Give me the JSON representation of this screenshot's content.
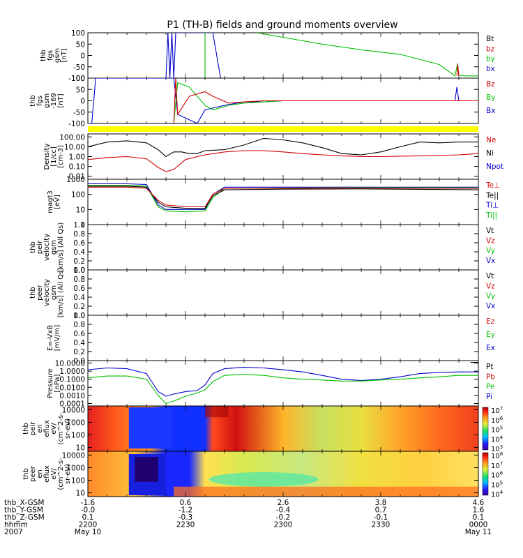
{
  "title": "P1 (TH-B) fields and ground moments overview",
  "chart_data": [
    {
      "id": "fgs",
      "type": "line",
      "ylabel": [
        "thb",
        "fgs",
        "gsm",
        "[nT]"
      ],
      "ylim": [
        -100,
        100
      ],
      "yticks": [
        "100",
        "50",
        "0",
        "-50",
        "-100"
      ],
      "legend": [
        {
          "name": "Bt",
          "color": "#000000"
        },
        {
          "name": "bz",
          "color": "#d40000"
        },
        {
          "name": "by",
          "color": "#00c000"
        },
        {
          "name": "bx",
          "color": "#0000cc"
        }
      ],
      "series": [
        {
          "name": "by",
          "color": "#00c000",
          "x": [
            0.3,
            0.3,
            0.34,
            0.4,
            0.5,
            0.6,
            0.7,
            0.8,
            0.9,
            0.94,
            0.947,
            0.95,
            0.97,
            1.0
          ],
          "y": [
            -100,
            100,
            130,
            110,
            80,
            50,
            25,
            5,
            -40,
            -90,
            -35,
            -88,
            -90,
            -90
          ]
        },
        {
          "name": "bx",
          "color": "#0000cc",
          "x": [
            0.2,
            0.205,
            0.21,
            0.215,
            0.22,
            0.225,
            0.32,
            0.34
          ],
          "y": [
            -100,
            100,
            -100,
            100,
            -100,
            100,
            100,
            -100
          ]
        },
        {
          "name": "bz",
          "color": "#d40000",
          "x": [
            0.945,
            0.947,
            0.95
          ],
          "y": [
            -90,
            -40,
            -90
          ]
        }
      ]
    },
    {
      "id": "fgs2",
      "type": "line",
      "ylabel": [
        "thb",
        "fgs",
        "gsm",
        "-169",
        "[nT]"
      ],
      "ylim": [
        -100,
        100
      ],
      "yticks": [
        "100",
        "50",
        "0",
        "-50",
        "-100"
      ],
      "legend": [
        {
          "name": "Bz",
          "color": "#d40000"
        },
        {
          "name": "By",
          "color": "#00c000"
        },
        {
          "name": "Bx",
          "color": "#0000cc"
        }
      ],
      "series": [
        {
          "name": "Bx",
          "color": "#0000cc",
          "x": [
            0.0,
            0.01,
            0.02,
            0.22,
            0.23,
            0.28,
            0.3,
            0.35,
            0.4,
            0.45,
            0.5,
            0.6,
            0.7,
            0.8,
            0.9,
            0.94,
            0.945,
            0.95,
            1.0
          ],
          "y": [
            -100,
            -100,
            100,
            100,
            -60,
            -100,
            -40,
            -20,
            -5,
            -5,
            0,
            0,
            0,
            0,
            0,
            0,
            60,
            0,
            0
          ]
        },
        {
          "name": "By",
          "color": "#00c000",
          "x": [
            0.22,
            0.23,
            0.26,
            0.28,
            0.3,
            0.32,
            0.34,
            0.36,
            0.38,
            0.4,
            0.45,
            0.5,
            0.6,
            0.7,
            0.8,
            0.9,
            1.0
          ],
          "y": [
            -100,
            80,
            60,
            20,
            -20,
            -40,
            -30,
            -20,
            -15,
            -10,
            -5,
            0,
            0,
            0,
            0,
            0,
            0
          ]
        },
        {
          "name": "Bz",
          "color": "#d40000",
          "x": [
            0.22,
            0.225,
            0.23,
            0.26,
            0.3,
            0.32,
            0.34,
            0.36,
            0.4,
            0.45,
            0.5,
            0.6,
            0.7,
            0.8,
            0.9,
            1.0
          ],
          "y": [
            -100,
            100,
            -60,
            20,
            40,
            20,
            5,
            -10,
            -5,
            0,
            0,
            0,
            0,
            0,
            0,
            0
          ]
        }
      ]
    },
    {
      "id": "density",
      "type": "line",
      "ylabel": [
        "Density",
        "[1/cc]",
        "[cm-3]"
      ],
      "yscale": "log",
      "ylim": [
        0.005,
        200
      ],
      "yticks": [
        "100.00",
        "10.00",
        "1.00",
        "0.10",
        "0.01"
      ],
      "legend": [
        {
          "name": "Ne",
          "color": "#d40000"
        },
        {
          "name": "Ni",
          "color": "#000000"
        },
        {
          "name": "Npot",
          "color": "#0000cc"
        }
      ],
      "series": [
        {
          "name": "Ni",
          "color": "#000000",
          "x": [
            0.0,
            0.05,
            0.1,
            0.15,
            0.18,
            0.2,
            0.22,
            0.24,
            0.26,
            0.28,
            0.3,
            0.35,
            0.4,
            0.45,
            0.5,
            0.55,
            0.6,
            0.65,
            0.7,
            0.75,
            0.8,
            0.85,
            0.9,
            0.95,
            1.0
          ],
          "y": [
            10,
            30,
            40,
            25,
            5,
            1,
            3,
            3,
            2,
            2,
            4,
            5,
            15,
            70,
            50,
            25,
            8,
            2,
            1.5,
            3,
            10,
            30,
            25,
            30,
            30
          ]
        },
        {
          "name": "Ne",
          "color": "#d40000",
          "x": [
            0.0,
            0.05,
            0.1,
            0.15,
            0.18,
            0.2,
            0.22,
            0.25,
            0.28,
            0.3,
            0.35,
            0.4,
            0.45,
            0.5,
            0.55,
            0.6,
            0.65,
            0.7,
            0.75,
            0.8,
            0.85,
            0.9,
            0.95,
            1.0
          ],
          "y": [
            0.5,
            0.8,
            1.0,
            0.6,
            0.08,
            0.03,
            0.05,
            0.5,
            1.0,
            1.5,
            3,
            4,
            4,
            3,
            2,
            1.5,
            1.2,
            1.0,
            1.0,
            1.1,
            1.2,
            1.3,
            1.5,
            2
          ]
        }
      ]
    },
    {
      "id": "temp",
      "type": "line",
      "ylabel": [
        "magt3",
        "[eV]"
      ],
      "yscale": "log",
      "ylim": [
        1,
        1000
      ],
      "yticks": [
        "1000",
        "100",
        "10",
        "1"
      ],
      "legend": [
        {
          "name": "Te⊥",
          "color": "#d40000"
        },
        {
          "name": "Te||",
          "color": "#000000"
        },
        {
          "name": "Ti⊥",
          "color": "#0000cc"
        },
        {
          "name": "Ti||",
          "color": "#00c000"
        }
      ],
      "series": [
        {
          "name": "Ti⊥",
          "color": "#0000cc",
          "x": [
            0.0,
            0.1,
            0.15,
            0.18,
            0.2,
            0.25,
            0.3,
            0.32,
            0.35,
            0.5,
            0.7,
            1.0
          ],
          "y": [
            500,
            500,
            450,
            20,
            10,
            10,
            10,
            100,
            300,
            300,
            300,
            300
          ]
        },
        {
          "name": "Ti||",
          "color": "#00c000",
          "x": [
            0.0,
            0.1,
            0.15,
            0.18,
            0.2,
            0.25,
            0.3,
            0.32,
            0.35,
            0.5,
            0.7,
            1.0
          ],
          "y": [
            400,
            400,
            350,
            15,
            8,
            7,
            8,
            60,
            250,
            260,
            280,
            270
          ]
        },
        {
          "name": "Te||",
          "color": "#000000",
          "x": [
            0.0,
            0.1,
            0.15,
            0.18,
            0.2,
            0.25,
            0.3,
            0.32,
            0.35,
            0.5,
            0.7,
            1.0
          ],
          "y": [
            350,
            350,
            300,
            30,
            15,
            12,
            12,
            80,
            200,
            220,
            230,
            200
          ]
        },
        {
          "name": "Te⊥",
          "color": "#d40000",
          "x": [
            0.0,
            0.1,
            0.15,
            0.18,
            0.2,
            0.25,
            0.3,
            0.32,
            0.35,
            0.5,
            0.7,
            1.0
          ],
          "y": [
            300,
            300,
            250,
            40,
            20,
            15,
            15,
            100,
            250,
            250,
            260,
            250
          ]
        }
      ]
    },
    {
      "id": "ivel",
      "type": "line",
      "ylabel": [
        "thb",
        "peir",
        "velocity",
        "gsm",
        "[km/s] (All Qs)"
      ],
      "ylim": [
        0,
        1
      ],
      "yticks": [
        "1.0",
        "0.8",
        "0.6",
        "0.4",
        "0.2",
        "0.0"
      ],
      "legend": [
        {
          "name": "Vt",
          "color": "#000000"
        },
        {
          "name": "Vz",
          "color": "#d40000"
        },
        {
          "name": "Vy",
          "color": "#00c000"
        },
        {
          "name": "Vx",
          "color": "#0000cc"
        }
      ],
      "series": []
    },
    {
      "id": "evel",
      "type": "line",
      "ylabel": [
        "thb",
        "peer",
        "velocity",
        "gsm",
        "[km/s] (All Qs)"
      ],
      "ylim": [
        0,
        1
      ],
      "yticks": [
        "1.0",
        "0.8",
        "0.6",
        "0.4",
        "0.2",
        "0.0"
      ],
      "legend": [
        {
          "name": "Vt",
          "color": "#000000"
        },
        {
          "name": "Vz",
          "color": "#d40000"
        },
        {
          "name": "Vy",
          "color": "#00c000"
        },
        {
          "name": "Vx",
          "color": "#0000cc"
        }
      ],
      "series": []
    },
    {
      "id": "efield",
      "type": "line",
      "ylabel": [
        "E=-VxB",
        "[mV/m]"
      ],
      "ylim": [
        0,
        1
      ],
      "yticks": [
        "1.0",
        "0.8",
        "0.6",
        "0.4",
        "0.2",
        "0.0"
      ],
      "legend": [
        {
          "name": "Ez",
          "color": "#d40000"
        },
        {
          "name": "Ey",
          "color": "#00c000"
        },
        {
          "name": "Ex",
          "color": "#0000cc"
        }
      ],
      "series": []
    },
    {
      "id": "pressure",
      "type": "line",
      "ylabel": [
        "Pressure",
        "[nPa]"
      ],
      "yscale": "log",
      "ylim": [
        5e-05,
        20
      ],
      "yticks": [
        "10.0000",
        "1.0000",
        "0.1000",
        "0.0100",
        "0.0010",
        "0.0001"
      ],
      "legend": [
        {
          "name": "Pt",
          "color": "#000000"
        },
        {
          "name": "Pb",
          "color": "#d40000"
        },
        {
          "name": "Pe",
          "color": "#00c000"
        },
        {
          "name": "Pi",
          "color": "#0000cc"
        }
      ],
      "series": [
        {
          "name": "Pi",
          "color": "#0000cc",
          "x": [
            0.0,
            0.05,
            0.1,
            0.15,
            0.18,
            0.2,
            0.22,
            0.25,
            0.28,
            0.3,
            0.32,
            0.35,
            0.4,
            0.45,
            0.5,
            0.55,
            0.6,
            0.65,
            0.7,
            0.75,
            0.8,
            0.85,
            0.9,
            0.95,
            1.0
          ],
          "y": [
            1.5,
            2.5,
            2,
            0.5,
            0.003,
            0.0008,
            0.0015,
            0.003,
            0.004,
            0.02,
            0.5,
            2,
            3,
            2.5,
            1.5,
            0.8,
            0.3,
            0.1,
            0.07,
            0.1,
            0.2,
            0.5,
            0.7,
            0.8,
            0.8
          ]
        },
        {
          "name": "Pe",
          "color": "#00c000",
          "x": [
            0.0,
            0.05,
            0.1,
            0.15,
            0.18,
            0.2,
            0.22,
            0.25,
            0.28,
            0.3,
            0.32,
            0.35,
            0.4,
            0.45,
            0.5,
            0.55,
            0.6,
            0.65,
            0.7,
            0.75,
            0.8,
            0.85,
            0.9,
            0.95,
            1.0
          ],
          "y": [
            0.15,
            0.25,
            0.25,
            0.1,
            0.001,
            0.0001,
            0.0002,
            0.0008,
            0.002,
            0.005,
            0.05,
            0.3,
            0.4,
            0.3,
            0.15,
            0.1,
            0.08,
            0.06,
            0.06,
            0.08,
            0.1,
            0.15,
            0.2,
            0.3,
            0.3
          ]
        },
        {
          "name": "Pt",
          "color": "#000000",
          "x": [
            0.98,
            1.0
          ],
          "y": [
            12,
            12
          ]
        }
      ]
    },
    {
      "id": "ispec",
      "type": "heatmap",
      "ylabel": [
        "thb",
        "peir",
        "en",
        "eflux",
        "eV/",
        "(cm^2-s-",
        "sr-eV)"
      ],
      "yscale": "log",
      "ylim": [
        5,
        20000
      ],
      "yticks": [
        "10000",
        "1000",
        "100",
        "10"
      ],
      "colorbar": [
        "10^7",
        "10^6",
        "10^5",
        "10^4",
        "10^3"
      ]
    },
    {
      "id": "espec",
      "type": "heatmap",
      "ylabel": [
        "thb",
        "peer",
        "en",
        "eflux",
        "eV/",
        "(cm^2-s-",
        "sr-eV)"
      ],
      "yscale": "log",
      "ylim": [
        5,
        20000
      ],
      "yticks": [
        "10000",
        "1000",
        "100",
        "10"
      ],
      "colorbar": [
        "10^8",
        "10^7",
        "10^6",
        "10^5",
        "10^4"
      ]
    }
  ],
  "xaxis": {
    "rows": [
      {
        "label": "thb_X-GSM",
        "values": [
          "-1.6",
          "",
          "0.6",
          "",
          "2.6",
          "",
          "3.8",
          "",
          "4.6"
        ]
      },
      {
        "label": "thb_Y-GSM",
        "values": [
          "-0.0",
          "",
          "-1.2",
          "",
          "-0.4",
          "",
          "0.7",
          "",
          "1.6"
        ]
      },
      {
        "label": "thb_Z-GSM",
        "values": [
          "0.1",
          "",
          "-0.3",
          "",
          "-0.2",
          "",
          "-0.1",
          "",
          "0.1"
        ]
      },
      {
        "label": "hhmm",
        "values": [
          "2200",
          "",
          "2230",
          "",
          "2300",
          "",
          "2330",
          "",
          "0000"
        ]
      },
      {
        "label": "2007",
        "values": [
          "May 10",
          "",
          "",
          "",
          "",
          "",
          "",
          "",
          "May 11"
        ]
      }
    ],
    "major_ticks": [
      0,
      0.25,
      0.5,
      0.75,
      1.0
    ]
  }
}
